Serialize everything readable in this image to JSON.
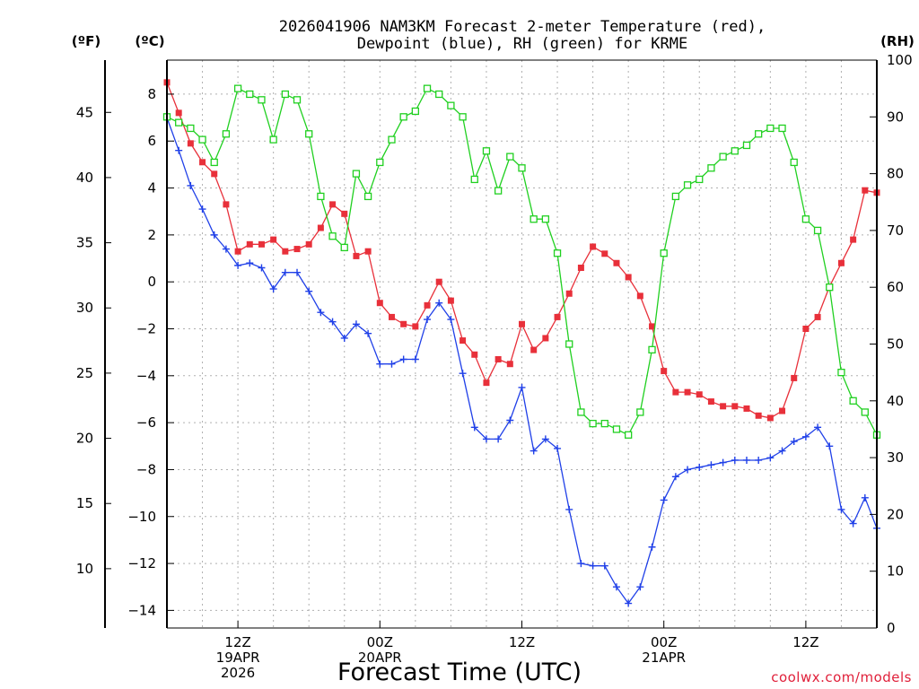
{
  "chart_data": {
    "type": "line",
    "title_lines": [
      "2026041906 NAM3KM Forecast 2-meter Temperature (red),",
      "Dewpoint (blue), RH (green) for KRME"
    ],
    "xlabel": "Forecast Time (UTC)",
    "credit": "coolwx.com/models",
    "units": {
      "fahrenheit": "(ºF)",
      "celsius": "(ºC)",
      "rh": "(RH)"
    },
    "x": {
      "start_hour": 6,
      "end_hour": 66,
      "step_hours": 1
    },
    "xlim": [
      6,
      66
    ],
    "x_ticks": [
      {
        "hour": 12,
        "lines": [
          "12Z",
          "19APR",
          "2026"
        ]
      },
      {
        "hour": 24,
        "lines": [
          "00Z",
          "20APR"
        ]
      },
      {
        "hour": 36,
        "lines": [
          "12Z"
        ]
      },
      {
        "hour": 48,
        "lines": [
          "00Z",
          "21APR"
        ]
      },
      {
        "hour": 60,
        "lines": [
          "12Z"
        ]
      }
    ],
    "ylim_celsius": [
      -14.75,
      9.45
    ],
    "y_ticks_celsius": [
      "8",
      "6",
      "4",
      "2",
      "0",
      "−2",
      "−4",
      "−6",
      "−8",
      "−10",
      "−12",
      "−14"
    ],
    "y_ticks_fahrenheit": [
      "45",
      "40",
      "35",
      "30",
      "25",
      "20",
      "15",
      "10"
    ],
    "ylim_rh": [
      0,
      100
    ],
    "y_ticks_rh": [
      "100",
      "90",
      "80",
      "70",
      "60",
      "50",
      "40",
      "30",
      "20",
      "10",
      "0"
    ],
    "grid": true,
    "series": [
      {
        "name": "2-meter Temperature",
        "axis": "celsius",
        "color": "#e8303a",
        "marker": "filled-square",
        "values": [
          8.5,
          7.2,
          5.9,
          5.1,
          4.6,
          3.3,
          1.3,
          1.6,
          1.6,
          1.8,
          1.3,
          1.4,
          1.6,
          2.3,
          3.3,
          2.9,
          1.1,
          1.3,
          -0.9,
          -1.5,
          -1.8,
          -1.9,
          -1.0,
          0.0,
          -0.8,
          -2.5,
          -3.1,
          -4.3,
          -3.3,
          -3.5,
          -1.8,
          -2.9,
          -2.4,
          -1.5,
          -0.5,
          0.6,
          1.5,
          1.2,
          0.8,
          0.2,
          -0.6,
          -1.9,
          -3.8,
          -4.7,
          -4.7,
          -4.8,
          -5.1,
          -5.3,
          -5.3,
          -5.4,
          -5.7,
          -5.8,
          -5.5,
          -4.1,
          -2.0,
          -1.5,
          -0.2,
          0.8,
          1.8,
          3.9,
          3.8
        ]
      },
      {
        "name": "Dewpoint",
        "axis": "celsius",
        "color": "#2040e8",
        "marker": "plus",
        "values": [
          7.0,
          5.6,
          4.1,
          3.1,
          2.0,
          1.4,
          0.7,
          0.8,
          0.6,
          -0.3,
          0.4,
          0.4,
          -0.4,
          -1.3,
          -1.7,
          -2.4,
          -1.8,
          -2.2,
          -3.5,
          -3.5,
          -3.3,
          -3.3,
          -1.6,
          -0.9,
          -1.6,
          -3.9,
          -6.2,
          -6.7,
          -6.7,
          -5.9,
          -4.5,
          -7.2,
          -6.7,
          -7.1,
          -9.7,
          -12.0,
          -12.1,
          -12.1,
          -13.0,
          -13.7,
          -13.0,
          -11.3,
          -9.3,
          -8.3,
          -8.0,
          -7.9,
          -7.8,
          -7.7,
          -7.6,
          -7.6,
          -7.6,
          -7.5,
          -7.2,
          -6.8,
          -6.6,
          -6.2,
          -7.0,
          -9.7,
          -10.3,
          -9.2,
          -10.5
        ]
      },
      {
        "name": "Relative Humidity",
        "axis": "rh",
        "color": "#20d020",
        "marker": "open-square",
        "values": [
          90,
          89,
          88,
          86,
          82,
          87,
          95,
          94,
          93,
          86,
          94,
          93,
          87,
          76,
          69,
          67,
          80,
          76,
          82,
          86,
          90,
          91,
          95,
          94,
          92,
          90,
          79,
          84,
          77,
          83,
          81,
          72,
          72,
          66,
          50,
          38,
          36,
          36,
          35,
          34,
          38,
          49,
          66,
          76,
          78,
          79,
          81,
          83,
          84,
          85,
          87,
          88,
          88,
          82,
          72,
          70,
          60,
          45,
          40,
          38,
          34
        ]
      }
    ]
  }
}
